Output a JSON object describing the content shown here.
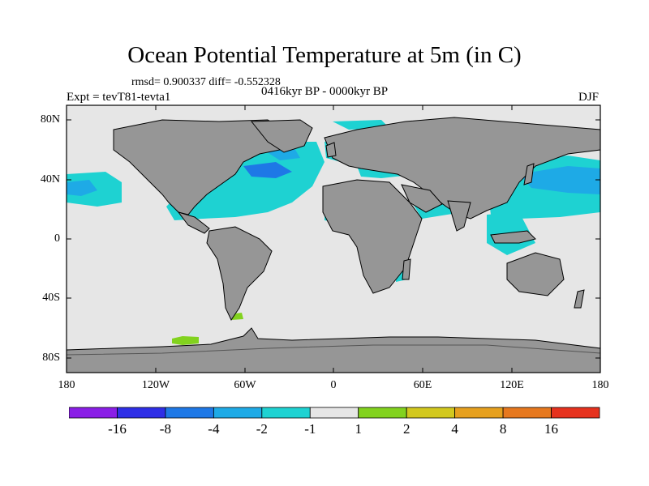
{
  "title": "Ocean Potential Temperature at 5m (in C)",
  "stats": "rmsd= 0.900337 diff= -0.552328",
  "experiment": "Expt = tevT81-tevta1",
  "period": "0416kyr BP - 0000kyr BP",
  "season": "DJF",
  "y_axis": {
    "ticks": [
      "80N",
      "40N",
      "0",
      "40S",
      "80S"
    ],
    "values": [
      80,
      40,
      0,
      -40,
      -80
    ]
  },
  "x_axis": {
    "ticks": [
      "180",
      "120W",
      "60W",
      "0",
      "60E",
      "120E",
      "180"
    ],
    "values": [
      -180,
      -120,
      -60,
      0,
      60,
      120,
      180
    ]
  },
  "colorbar": {
    "colors": [
      "#8a1ee6",
      "#2e2ee6",
      "#1e78e6",
      "#1eaae6",
      "#1ed2d2",
      "#e6e6e6",
      "#82d21e",
      "#d2c81e",
      "#e6a01e",
      "#e6781e",
      "#e6321e"
    ],
    "labels": [
      "-16",
      "-8",
      "-4",
      "-2",
      "-1",
      "1",
      "2",
      "4",
      "8",
      "16"
    ]
  },
  "colors": {
    "land": "#969696",
    "ocean_neutral": "#e6e6e6"
  }
}
